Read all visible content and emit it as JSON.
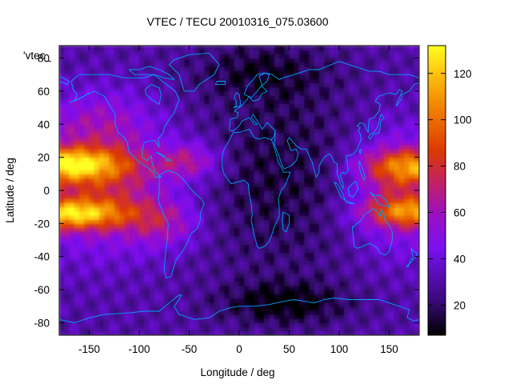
{
  "chart_data": {
    "type": "heatmap",
    "title": "VTEC / TECU 20010316_075.03600",
    "xlabel": "Longitude / deg",
    "ylabel": "Latitude / deg",
    "xlim": [
      -180,
      180
    ],
    "ylim": [
      -87.5,
      87.5
    ],
    "x_ticks": [
      -150,
      -100,
      -50,
      0,
      50,
      100,
      150
    ],
    "y_ticks": [
      -80,
      -60,
      -40,
      -20,
      0,
      20,
      40,
      60,
      80
    ],
    "colorbar": {
      "min": 7,
      "max": 132,
      "ticks": [
        20,
        40,
        60,
        80,
        100,
        120
      ],
      "colormap": "black-purple-red-orange-yellow"
    },
    "key_label": "'vtec_",
    "overlay": "world coastlines",
    "overlay_color": "#00a0ff",
    "grid": false
  }
}
